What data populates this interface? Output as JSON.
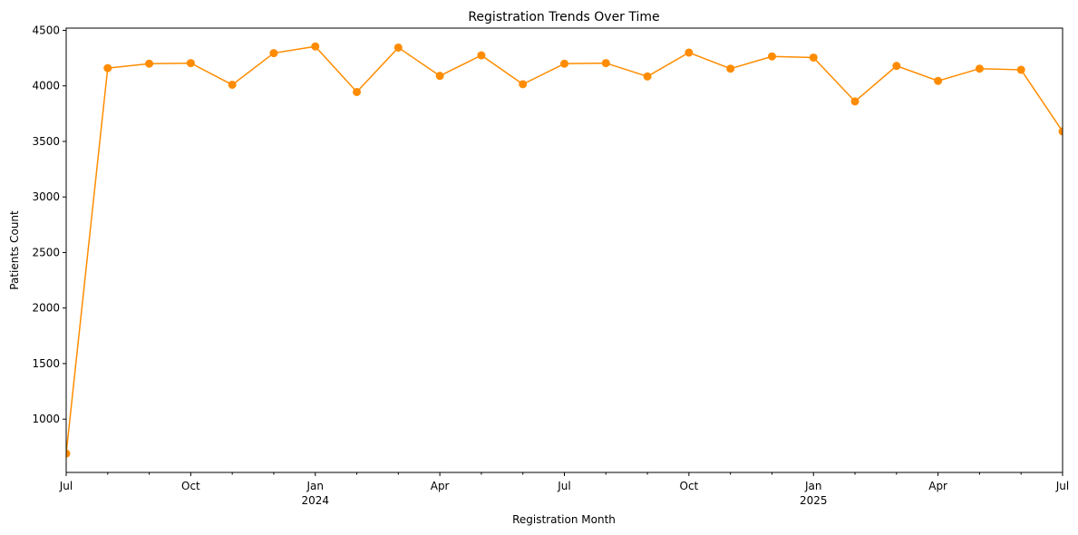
{
  "chart_data": {
    "type": "line",
    "title": "Registration Trends Over Time",
    "xlabel": "Registration Month",
    "ylabel": "Patients Count",
    "x": [
      "2023-07",
      "2023-08",
      "2023-09",
      "2023-10",
      "2023-11",
      "2023-12",
      "2024-01",
      "2024-02",
      "2024-03",
      "2024-04",
      "2024-05",
      "2024-06",
      "2024-07",
      "2024-08",
      "2024-09",
      "2024-10",
      "2024-11",
      "2024-12",
      "2025-01",
      "2025-02",
      "2025-03",
      "2025-04",
      "2025-05",
      "2025-06",
      "2025-07"
    ],
    "series": [
      {
        "values": [
          690,
          4160,
          4200,
          4205,
          4010,
          4295,
          4355,
          3945,
          4345,
          4090,
          4275,
          4015,
          4200,
          4205,
          4085,
          4300,
          4155,
          4265,
          4255,
          3860,
          4180,
          4045,
          4155,
          4145,
          3590
        ],
        "color": "#ff8c00",
        "marker": "circle"
      }
    ],
    "ylim": [
      520,
      4520
    ],
    "yticks": [
      1000,
      1500,
      2000,
      2500,
      3000,
      3500,
      4000,
      4500
    ],
    "xticks": [
      {
        "x": "2023-07",
        "label": "Jul",
        "sublabel": ""
      },
      {
        "x": "2023-10",
        "label": "Oct",
        "sublabel": ""
      },
      {
        "x": "2024-01",
        "label": "Jan",
        "sublabel": "2024"
      },
      {
        "x": "2024-04",
        "label": "Apr",
        "sublabel": ""
      },
      {
        "x": "2024-07",
        "label": "Jul",
        "sublabel": ""
      },
      {
        "x": "2024-10",
        "label": "Oct",
        "sublabel": ""
      },
      {
        "x": "2025-01",
        "label": "Jan",
        "sublabel": "2025"
      },
      {
        "x": "2025-04",
        "label": "Apr",
        "sublabel": ""
      },
      {
        "x": "2025-07",
        "label": "Jul",
        "sublabel": ""
      }
    ],
    "grid": false,
    "legend": "none"
  }
}
